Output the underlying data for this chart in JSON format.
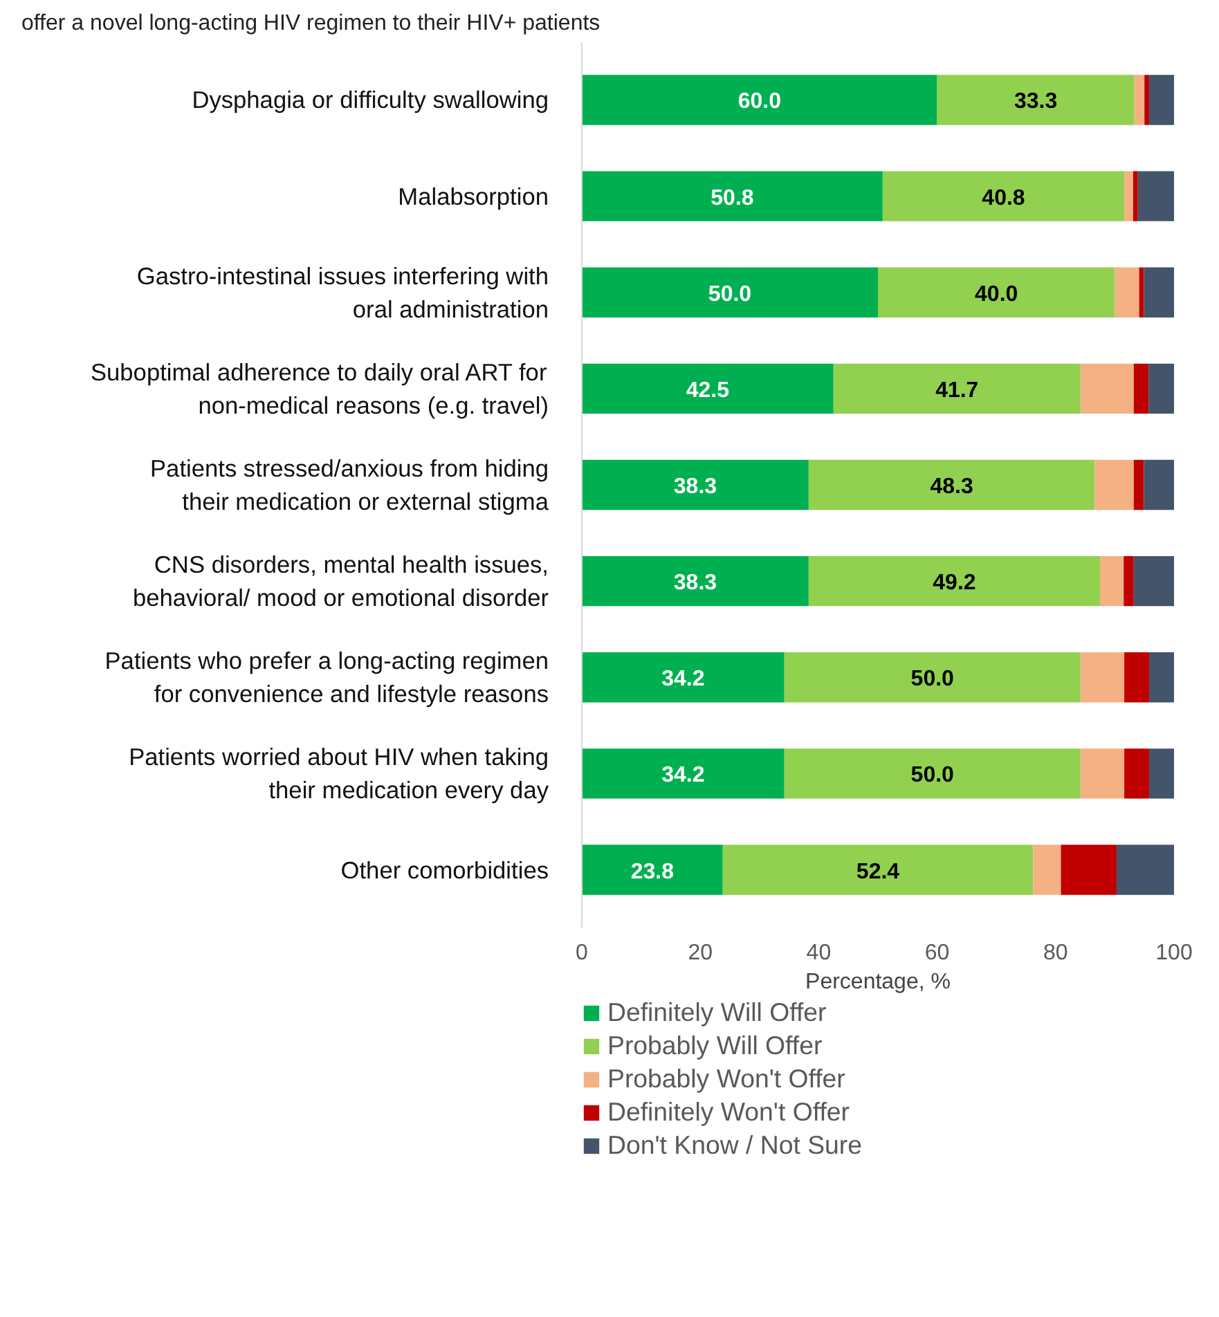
{
  "chart_data": {
    "type": "bar",
    "orientation": "horizontal",
    "stacked": true,
    "title": "offer a novel long-acting HIV regimen to their HIV+ patients",
    "categories": [
      "Dysphagia or difficulty swallowing",
      "Malabsorption",
      "Gastro-intestinal issues interfering with oral administration",
      "Suboptimal adherence to daily oral ART for non-medical reasons (e.g. travel)",
      "Patients stressed/anxious from hiding their medication or external stigma",
      "CNS disorders, mental health issues, behavioral/ mood or emotional disorder",
      "Patients who prefer a long-acting regimen for convenience and lifestyle reasons",
      "Patients worried about HIV when taking their medication every day",
      "Other comorbidities"
    ],
    "series": [
      {
        "name": "Definitely Will Offer",
        "color": "#00b050",
        "values": [
          60.0,
          50.8,
          50.0,
          42.5,
          38.3,
          38.3,
          34.2,
          34.2,
          23.8
        ],
        "value_labels": [
          "60.0",
          "50.8",
          "50.0",
          "42.5",
          "38.3",
          "38.3",
          "34.2",
          "34.2",
          "23.8"
        ]
      },
      {
        "name": "Probably Will Offer",
        "color": "#92d050",
        "values": [
          33.3,
          40.8,
          40.0,
          41.7,
          48.3,
          49.2,
          50.0,
          50.0,
          52.4
        ],
        "value_labels": [
          "33.3",
          "40.8",
          "40.0",
          "41.7",
          "48.3",
          "49.2",
          "50.0",
          "50.0",
          "52.4"
        ]
      },
      {
        "name": "Probably Won't Offer",
        "color": "#f4b183",
        "values": [
          1.7,
          1.5,
          4.1,
          9.0,
          6.6,
          4.0,
          7.4,
          7.4,
          4.7
        ]
      },
      {
        "name": "Definitely Won't Offer",
        "color": "#c00000",
        "values": [
          0.8,
          0.8,
          0.8,
          2.5,
          1.7,
          1.7,
          4.2,
          4.2,
          9.4
        ]
      },
      {
        "name": "Don't Know / Not Sure",
        "color": "#44546a",
        "values": [
          4.2,
          6.1,
          5.1,
          4.3,
          5.1,
          6.8,
          4.2,
          4.2,
          9.7
        ]
      }
    ],
    "xlim": [
      0,
      100
    ],
    "xticks": [
      0,
      20,
      40,
      60,
      80,
      100
    ],
    "xlabel": "Percentage, %",
    "grid": false,
    "legend": "bottom left"
  }
}
